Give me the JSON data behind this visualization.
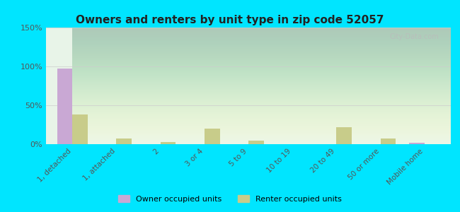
{
  "title": "Owners and renters by unit type in zip code 52057",
  "categories": [
    "1, detached",
    "1, attached",
    "2",
    "3 or 4",
    "5 to 9",
    "10 to 19",
    "20 to 49",
    "50 or more",
    "Mobile home"
  ],
  "owner_values": [
    97,
    0,
    0,
    0,
    0,
    0,
    0,
    0,
    2
  ],
  "renter_values": [
    38,
    7,
    3,
    20,
    5,
    0,
    22,
    7,
    0
  ],
  "owner_color": "#c9a8d4",
  "renter_color": "#c8cc8a",
  "ylim": [
    0,
    150
  ],
  "yticks": [
    0,
    50,
    100,
    150
  ],
  "ytick_labels": [
    "0%",
    "50%",
    "100%",
    "150%"
  ],
  "background_color": "#e8f4e8",
  "outer_background": "#00e5ff",
  "grid_color": "#cccccc",
  "watermark": "City-Data.com",
  "legend_owner": "Owner occupied units",
  "legend_renter": "Renter occupied units",
  "bar_width": 0.35
}
